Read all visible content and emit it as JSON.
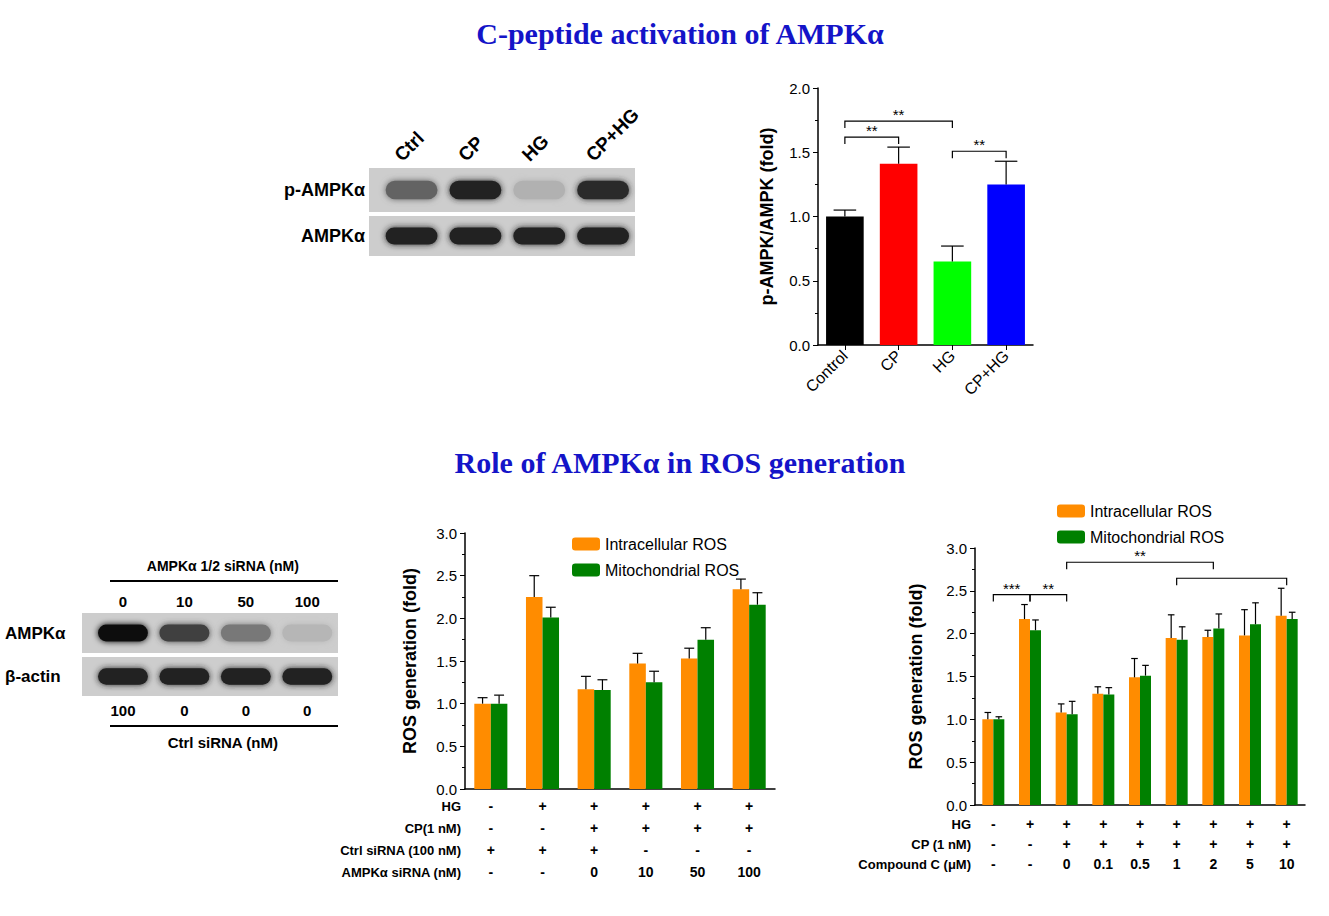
{
  "sections": [
    "C-peptide activation of AMPKα",
    "Role of AMPKα in ROS generation"
  ],
  "blots": [
    {
      "lanes": [
        "Ctrl",
        "CP",
        "HG",
        "CP+HG"
      ],
      "rows": [
        {
          "label": "p-AMPKα",
          "band_strength": [
            0.55,
            0.9,
            0.15,
            0.85
          ]
        },
        {
          "label": "AMPKα",
          "band_strength": [
            0.9,
            0.9,
            0.9,
            0.9
          ]
        }
      ]
    },
    {
      "header": "AMPKα 1/2 siRNA (nM)",
      "lanes": [
        0,
        10,
        50,
        100
      ],
      "rows": [
        {
          "label": "AMPKα",
          "band_strength": [
            1.0,
            0.75,
            0.45,
            0.12
          ]
        },
        {
          "label": "β-actin",
          "band_strength": [
            0.9,
            0.9,
            0.9,
            0.9
          ]
        }
      ],
      "footer_lanes": [
        100,
        0,
        0,
        0
      ],
      "footer": "Ctrl siRNA (nM)"
    }
  ],
  "chart_data": [
    {
      "type": "bar",
      "ylabel": "p-AMPK/AMPK (fold)",
      "categories": [
        "Control",
        "CP",
        "HG",
        "CP+HG"
      ],
      "values": [
        1.0,
        1.41,
        0.65,
        1.25
      ],
      "errors": [
        0.05,
        0.13,
        0.12,
        0.18
      ],
      "colors": [
        "#000000",
        "#ff0000",
        "#00ff00",
        "#0000ff"
      ],
      "ylim": [
        0,
        2
      ],
      "yticks": [
        {
          "value": 0,
          "label": "0.0"
        },
        {
          "value": 0.5,
          "label": "0.5"
        },
        {
          "value": 1,
          "label": "1.0"
        },
        {
          "value": 1.5,
          "label": "1.5"
        },
        {
          "value": 2,
          "label": "2.0"
        }
      ],
      "grid": false,
      "annotations": [
        {
          "between": [
            0,
            1
          ],
          "label": "**"
        },
        {
          "between": [
            0,
            2
          ],
          "label": "**"
        },
        {
          "between": [
            2,
            3
          ],
          "label": "**"
        }
      ]
    },
    {
      "type": "bar",
      "ylabel": "ROS generation (fold)",
      "categories": [
        null,
        null,
        null,
        null,
        null,
        null
      ],
      "series": [
        {
          "name": "Intracellular ROS",
          "color": "#ff8c00",
          "values": [
            1.0,
            2.25,
            1.17,
            1.47,
            1.53,
            2.34
          ],
          "errors": [
            0.07,
            0.25,
            0.15,
            0.12,
            0.12,
            0.12
          ]
        },
        {
          "name": "Mitochondrial ROS",
          "color": "#008000",
          "values": [
            1.0,
            2.01,
            1.16,
            1.25,
            1.75,
            2.16
          ],
          "errors": [
            0.1,
            0.12,
            0.12,
            0.13,
            0.14,
            0.14
          ]
        }
      ],
      "legend": "upper right",
      "ylim": [
        0,
        3
      ],
      "yticks": [
        {
          "value": 0,
          "label": "0.0"
        },
        {
          "value": 0.5,
          "label": "0.5"
        },
        {
          "value": 1,
          "label": "1.0"
        },
        {
          "value": 1.5,
          "label": "1.5"
        },
        {
          "value": 2,
          "label": "2.0"
        },
        {
          "value": 2.5,
          "label": "2.5"
        },
        {
          "value": 3,
          "label": "3.0"
        }
      ],
      "grid": false,
      "treatments": [
        {
          "label": "HG",
          "values": [
            "-",
            "+",
            "+",
            "+",
            "+",
            "+"
          ]
        },
        {
          "label": "CP(1 nM)",
          "values": [
            "-",
            "-",
            "+",
            "+",
            "+",
            "+"
          ]
        },
        {
          "label": "Ctrl siRNA (100 nM)",
          "values": [
            "+",
            "+",
            "+",
            "-",
            "-",
            "-"
          ]
        },
        {
          "label": "AMPKα siRNA (nM)",
          "values": [
            "-",
            "-",
            "0",
            "10",
            "50",
            "100"
          ]
        }
      ]
    },
    {
      "type": "bar",
      "ylabel": "ROS generation (fold)",
      "categories": [
        null,
        null,
        null,
        null,
        null,
        null,
        null,
        null,
        null
      ],
      "series": [
        {
          "name": "Intracellular ROS",
          "color": "#ff8c00",
          "values": [
            1.0,
            2.17,
            1.08,
            1.3,
            1.49,
            1.95,
            1.96,
            1.98,
            2.21
          ],
          "errors": [
            0.08,
            0.17,
            0.1,
            0.08,
            0.22,
            0.27,
            0.08,
            0.3,
            0.32
          ]
        },
        {
          "name": "Mitochondrial ROS",
          "color": "#008000",
          "values": [
            1.0,
            2.04,
            1.06,
            1.29,
            1.51,
            1.93,
            2.06,
            2.11,
            2.17
          ],
          "errors": [
            0.03,
            0.12,
            0.15,
            0.08,
            0.12,
            0.15,
            0.17,
            0.25,
            0.08
          ]
        }
      ],
      "legend": "upper left",
      "ylim": [
        0,
        3
      ],
      "yticks": [
        {
          "value": 0,
          "label": "0.0"
        },
        {
          "value": 0.5,
          "label": "0.5"
        },
        {
          "value": 1,
          "label": "1.0"
        },
        {
          "value": 1.5,
          "label": "1.5"
        },
        {
          "value": 2,
          "label": "2.0"
        },
        {
          "value": 2.5,
          "label": "2.5"
        },
        {
          "value": 3,
          "label": "3.0"
        }
      ],
      "grid": false,
      "treatments": [
        {
          "label": "HG",
          "values": [
            "-",
            "+",
            "+",
            "+",
            "+",
            "+",
            "+",
            "+",
            "+"
          ]
        },
        {
          "label": "CP (1 nM)",
          "values": [
            "-",
            "-",
            "+",
            "+",
            "+",
            "+",
            "+",
            "+",
            "+"
          ]
        },
        {
          "label": "Compound C (μM)",
          "values": [
            "-",
            "-",
            "0",
            "0.1",
            "0.5",
            "1",
            "2",
            "5",
            "10"
          ]
        }
      ],
      "annotations": [
        {
          "between": [
            0,
            1
          ],
          "label": "***"
        },
        {
          "between": [
            1,
            2
          ],
          "label": "**"
        },
        {
          "between": [
            5,
            8
          ]
        },
        {
          "between": [
            2,
            6
          ],
          "label": "**"
        }
      ]
    }
  ]
}
